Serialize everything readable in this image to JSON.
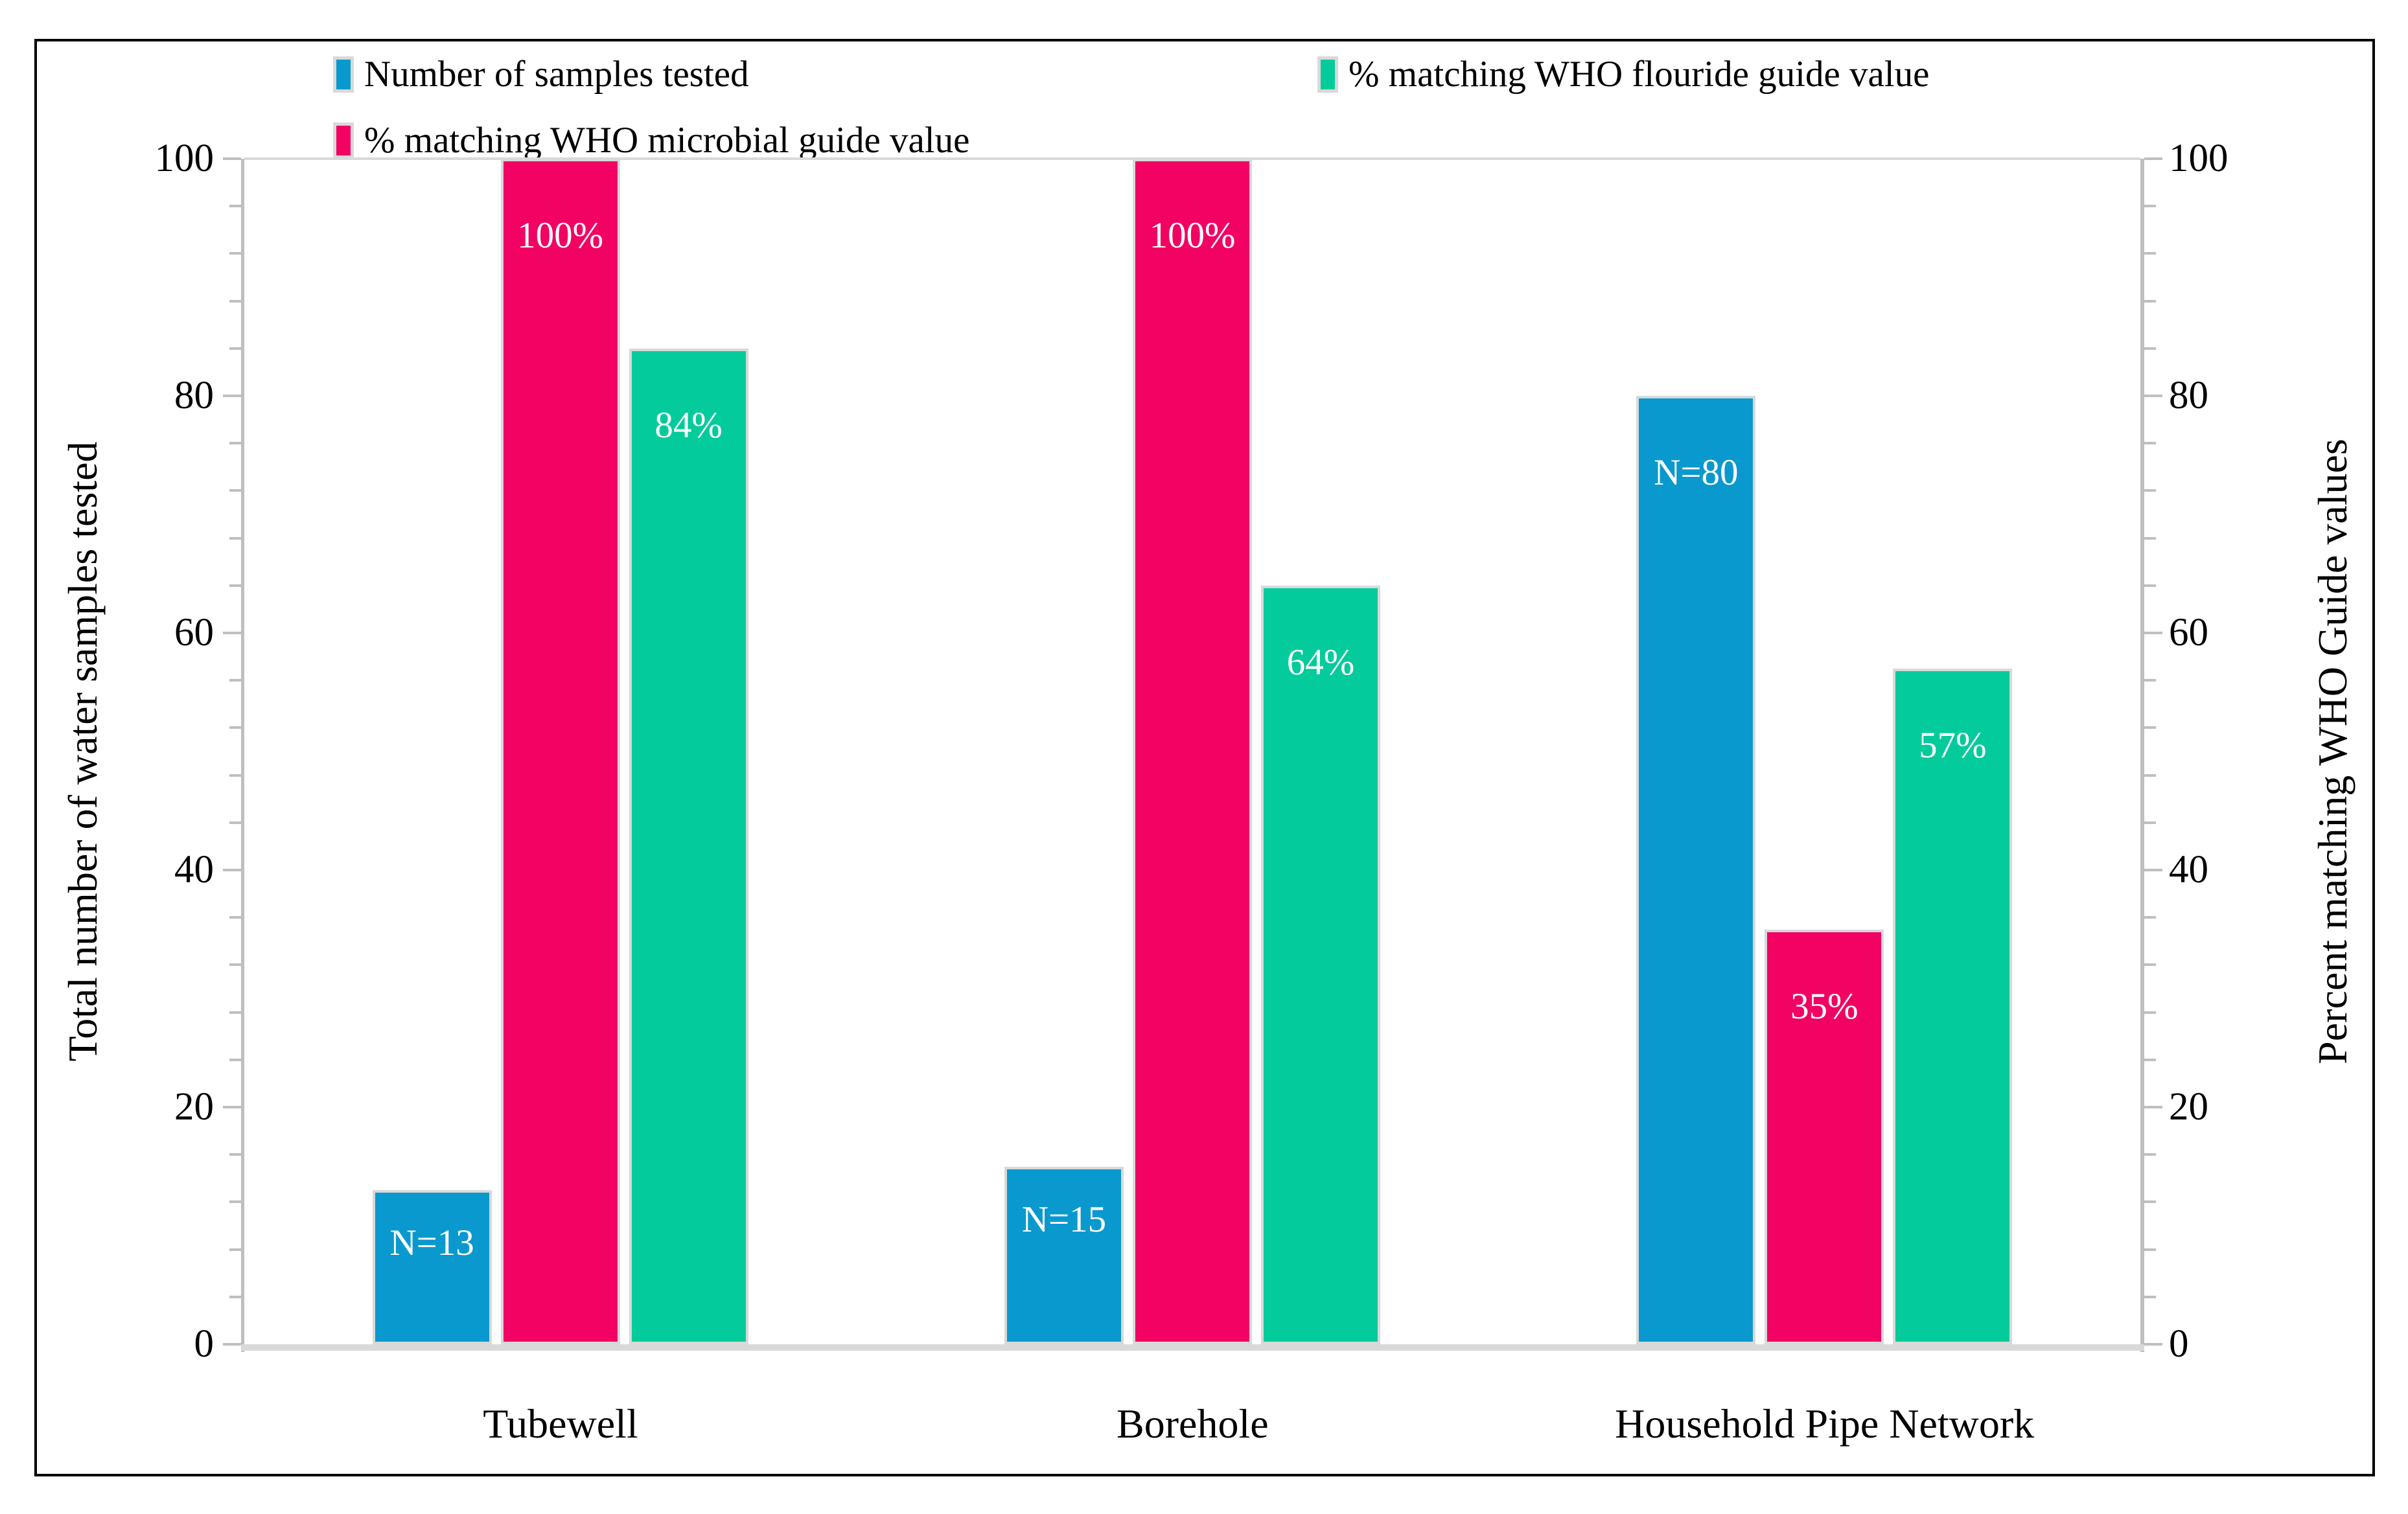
{
  "chart_data": {
    "type": "bar",
    "title": "",
    "categories": [
      "Tubewell",
      "Borehole",
      "Household Pipe Network"
    ],
    "series": [
      {
        "name": "Number of samples tested",
        "color": "#0999ce",
        "values": [
          13,
          15,
          80
        ],
        "data_labels": [
          "N=13",
          "N=15",
          "N=80"
        ]
      },
      {
        "name": "% matching WHO microbial guide value",
        "color": "#f10263",
        "values": [
          100,
          100,
          35
        ],
        "data_labels": [
          "100%",
          "100%",
          "35%"
        ]
      },
      {
        "name": "% matching WHO flouride guide value",
        "color": "#03cb9b",
        "values": [
          84,
          64,
          57
        ],
        "data_labels": [
          "84%",
          "64%",
          "57%"
        ]
      }
    ],
    "left_axis": {
      "title": "Total number of water samples tested",
      "ticks": [
        0,
        20,
        40,
        60,
        80,
        100
      ],
      "range": [
        0,
        100
      ],
      "minor_tick_step": 4
    },
    "right_axis": {
      "title": "Percent matching WHO Guide values",
      "ticks": [
        0,
        20,
        40,
        60,
        80,
        100
      ],
      "range": [
        0,
        100
      ],
      "minor_tick_step": 4
    },
    "legend_position": "top",
    "grid": false,
    "colors": {
      "bar_outline": "#d9d9d9",
      "axis_line": "#bfbfbf",
      "label_text": "#ffffff"
    }
  }
}
